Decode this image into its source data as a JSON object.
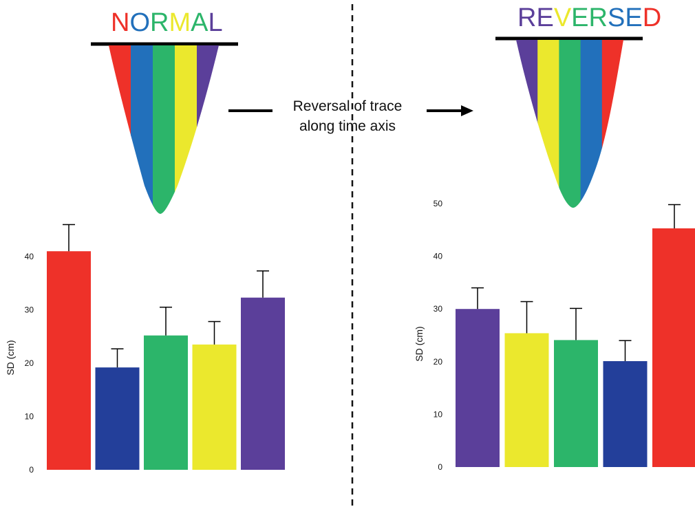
{
  "colors": {
    "red": "#ee3129",
    "blue": "#233f9a",
    "cone_blue": "#2270bb",
    "green": "#2cb56a",
    "yellow": "#ebe82d",
    "purple": "#5b3f9a"
  },
  "annotation": {
    "line1": "Reversal of trace",
    "line2": "along time axis"
  },
  "normal_title": {
    "letters": [
      {
        "ch": "N",
        "color": "#ee3129"
      },
      {
        "ch": "O",
        "color": "#2270bb"
      },
      {
        "ch": "R",
        "color": "#2cb56a"
      },
      {
        "ch": "M",
        "color": "#ebe82d"
      },
      {
        "ch": "A",
        "color": "#2cb56a"
      },
      {
        "ch": "L",
        "color": "#5b3f9a"
      }
    ],
    "cone_stripes": [
      "#ee3129",
      "#2270bb",
      "#2cb56a",
      "#ebe82d",
      "#5b3f9a"
    ]
  },
  "reversed_title": {
    "letters": [
      {
        "ch": "R",
        "color": "#5b3f9a"
      },
      {
        "ch": "E",
        "color": "#5b3f9a"
      },
      {
        "ch": "V",
        "color": "#ebe82d"
      },
      {
        "ch": "E",
        "color": "#2cb56a"
      },
      {
        "ch": "R",
        "color": "#2cb56a"
      },
      {
        "ch": "S",
        "color": "#2270bb"
      },
      {
        "ch": "E",
        "color": "#2270bb"
      },
      {
        "ch": "D",
        "color": "#ee3129"
      }
    ],
    "cone_stripes": [
      "#5b3f9a",
      "#ebe82d",
      "#2cb56a",
      "#2270bb",
      "#ee3129"
    ]
  },
  "chart_data": [
    {
      "type": "bar",
      "ylabel": "SD (cm)",
      "ylim": [
        0,
        40
      ],
      "yticks": [
        "0",
        "10",
        "20",
        "30",
        "40"
      ],
      "values": [
        41,
        19.2,
        25.2,
        23.5,
        32.3
      ],
      "errors": [
        5,
        3.5,
        5.3,
        4.3,
        5
      ],
      "colors": [
        "#ee3129",
        "#233f9a",
        "#2cb56a",
        "#ebe82d",
        "#5b3f9a"
      ]
    },
    {
      "type": "bar",
      "ylabel": "SD (cm)",
      "ylim": [
        0,
        50
      ],
      "yticks": [
        "0",
        "10",
        "20",
        "30",
        "40",
        "50"
      ],
      "values": [
        30,
        25.4,
        24.1,
        20.1,
        45.3
      ],
      "errors": [
        4,
        6,
        6,
        3.9,
        4.5
      ],
      "colors": [
        "#5b3f9a",
        "#ebe82d",
        "#2cb56a",
        "#233f9a",
        "#ee3129"
      ]
    }
  ]
}
